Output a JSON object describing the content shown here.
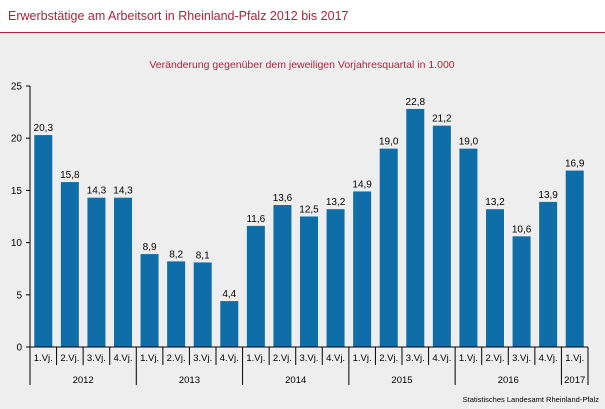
{
  "title": "Erwerbstätige am Arbeitsort in Rheinland-Pfalz 2012 bis 2017",
  "source": "Statistisches Landesamt Rheinland-Pfalz",
  "chart_data": {
    "type": "bar",
    "title": "Veränderung gegenüber dem jeweiligen Vorjahresquartal in 1.000",
    "xlabel": "",
    "ylabel": "",
    "ylim": [
      0,
      25
    ],
    "yticks": [
      0,
      5,
      10,
      15,
      20,
      25
    ],
    "grid": false,
    "legend": "none",
    "bar_color": "#0f6ea7",
    "categories": [
      "1.Vj.",
      "2.Vj.",
      "3.Vj.",
      "4.Vj.",
      "1.Vj.",
      "2.Vj.",
      "3.Vj.",
      "4.Vj.",
      "1.Vj.",
      "2.Vj.",
      "3.Vj.",
      "4.Vj.",
      "1.Vj.",
      "2.Vj.",
      "3.Vj.",
      "4.Vj.",
      "1.Vj.",
      "2.Vj.",
      "3.Vj.",
      "4.Vj.",
      "1.Vj."
    ],
    "value_labels": [
      "20,3",
      "15,8",
      "14,3",
      "14,3",
      "8,9",
      "8,2",
      "8,1",
      "4,4",
      "11,6",
      "13,6",
      "12,5",
      "13,2",
      "14,9",
      "19,0",
      "22,8",
      "21,2",
      "19,0",
      "13,2",
      "10,6",
      "13,9",
      "16,9"
    ],
    "values": [
      20.3,
      15.8,
      14.3,
      14.3,
      8.9,
      8.2,
      8.1,
      4.4,
      11.6,
      13.6,
      12.5,
      13.2,
      14.9,
      19.0,
      22.8,
      21.2,
      19.0,
      13.2,
      10.6,
      13.9,
      16.9
    ],
    "groups": [
      {
        "label": "2012",
        "count": 4
      },
      {
        "label": "2013",
        "count": 4
      },
      {
        "label": "2014",
        "count": 4
      },
      {
        "label": "2015",
        "count": 4
      },
      {
        "label": "2016",
        "count": 4
      },
      {
        "label": "2017",
        "count": 1
      }
    ]
  }
}
